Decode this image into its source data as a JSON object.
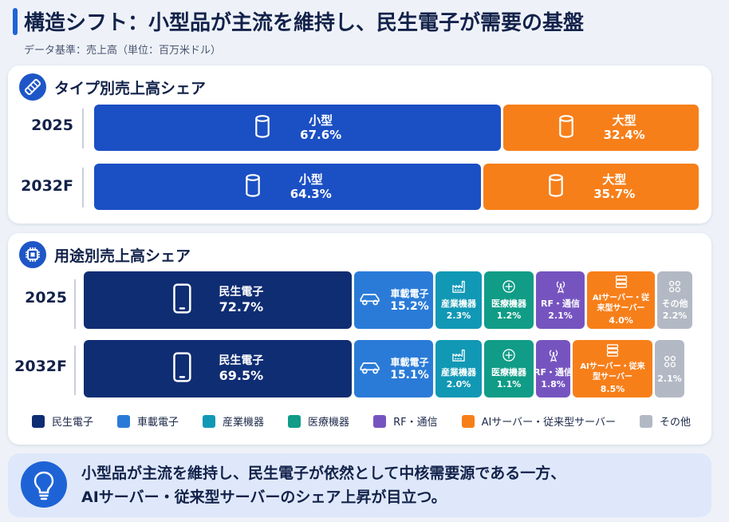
{
  "title": "構造シフト：小型品が主流を維持し、民生電子が需要の基盤",
  "subtitle": "データ基準：売上高（単位：百万米ドル）",
  "colors": {
    "small": "#1b4fc4",
    "large": "#f77f1a",
    "consumer": "#0f2d73",
    "automotive": "#2a7bd8",
    "industrial": "#1198b5",
    "medical": "#109c86",
    "rf": "#7654c0",
    "ai": "#f77f1a",
    "other": "#b3b9c4"
  },
  "chart_data": [
    {
      "type": "bar",
      "orientation": "horizontal-stacked-100",
      "title": "タイプ別売上高シェア",
      "categories": [
        "2025",
        "2032F"
      ],
      "series": [
        {
          "name": "小型",
          "values": [
            67.6,
            64.3
          ],
          "labels": [
            "67.6%",
            "64.3%"
          ]
        },
        {
          "name": "大型",
          "values": [
            32.4,
            35.7
          ],
          "labels": [
            "32.4%",
            "35.7%"
          ]
        }
      ]
    },
    {
      "type": "bar",
      "orientation": "horizontal-stacked-100",
      "title": "用途別売上高シェア",
      "categories": [
        "2025",
        "2032F"
      ],
      "series": [
        {
          "name": "民生電子",
          "values": [
            72.7,
            69.5
          ],
          "labels": [
            "72.7%",
            "69.5%"
          ],
          "short": [
            "民生電子",
            "民生電子"
          ]
        },
        {
          "name": "車載電子",
          "values": [
            15.2,
            15.1
          ],
          "labels": [
            "15.2%",
            "15.1%"
          ],
          "short": [
            "車載電子",
            "車載電子"
          ]
        },
        {
          "name": "産業機器",
          "values": [
            2.3,
            2.0
          ],
          "labels": [
            "2.3%",
            "2.0%"
          ],
          "short": [
            "産業機器",
            "産業機器"
          ]
        },
        {
          "name": "医療機器",
          "values": [
            1.2,
            1.1
          ],
          "labels": [
            "1.2%",
            "1.1%"
          ],
          "short": [
            "医療機器",
            "医療機器"
          ]
        },
        {
          "name": "RF・通信",
          "values": [
            2.1,
            1.8
          ],
          "labels": [
            "2.1%",
            "1.8%"
          ],
          "short": [
            "RF・通信",
            "RF・通信"
          ]
        },
        {
          "name": "AIサーバー・従来型サーバー",
          "values": [
            4.0,
            8.5
          ],
          "labels": [
            "4.0%",
            "8.5%"
          ],
          "short": [
            "AIサーバー・従来型サーバー",
            "AIサーバー・従来型サーバー"
          ]
        },
        {
          "name": "その他",
          "values": [
            2.2,
            2.1
          ],
          "labels": [
            "2.2%",
            "2.1%"
          ],
          "short": [
            "その他",
            ""
          ]
        }
      ]
    }
  ],
  "conclusion": {
    "line1": "小型品が主流を維持し、民生電子が依然として中核需要源である一方、",
    "line2": "AIサーバー・従来型サーバーのシェア上昇が目立つ。"
  }
}
